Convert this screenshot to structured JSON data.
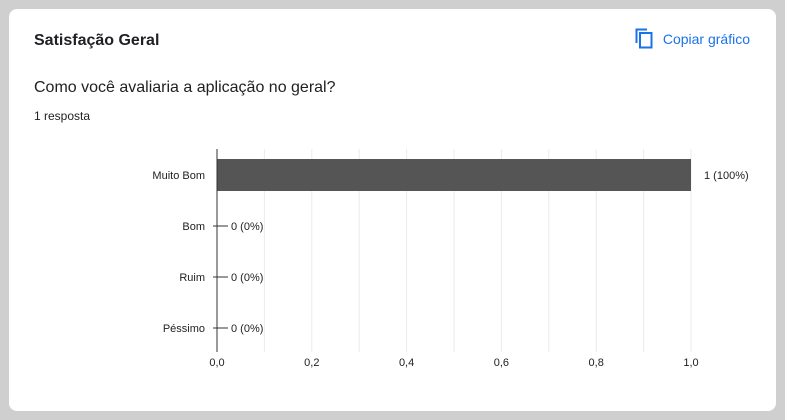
{
  "section": {
    "title": "Satisfação Geral"
  },
  "actions": {
    "copy_chart_label": "Copiar gráfico",
    "copy_icon": "copy-icon"
  },
  "question": {
    "text": "Como você avaliaria a aplicação no geral?"
  },
  "responses": {
    "count_label": "1 resposta"
  },
  "colors": {
    "bar": "#555555",
    "accent": "#1a73e8",
    "grid": "#ebebeb",
    "axis": "#333333"
  },
  "chart_data": {
    "type": "bar",
    "orientation": "horizontal",
    "categories": [
      "Muito Bom",
      "Bom",
      "Ruim",
      "Péssimo"
    ],
    "values": [
      1,
      0,
      0,
      0
    ],
    "data_labels": [
      "1 (100%)",
      "0 (0%)",
      "0 (0%)",
      "0 (0%)"
    ],
    "xlim": [
      0,
      1
    ],
    "xticks": [
      0,
      0.2,
      0.4,
      0.6,
      0.8,
      1.0
    ],
    "xtick_labels": [
      "0,0",
      "0,2",
      "0,4",
      "0,6",
      "0,8",
      "1,0"
    ],
    "grid": true
  }
}
